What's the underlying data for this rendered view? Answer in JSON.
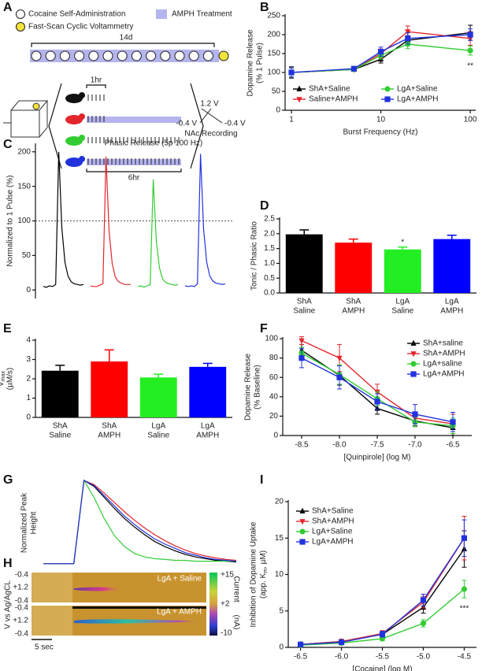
{
  "panel_a": {
    "panel": "A",
    "legend": [
      "Cocaine Self-Administration",
      "AMPH Treatment",
      "Fast-Scan Cyclic Voltammetry"
    ],
    "duration": "14d",
    "hour": "1hr",
    "session": "6hr",
    "voltages": [
      "1.2 V",
      "-0.4 V",
      "-0.4 V"
    ],
    "region": "NAc Recording"
  },
  "panel_h": {
    "panel": "H",
    "ylabel": "V vs Ag/AgCL",
    "voltages": [
      "-0.4",
      "+1.2",
      "-0.4",
      "-0.4",
      "+1.2",
      "-0.4"
    ],
    "conditions": [
      "LgA + Saline",
      "LgA + AMPH"
    ],
    "colorbar": [
      "+15",
      "+2",
      "-10"
    ],
    "colorbar_label": [
      "Current",
      "(nA)"
    ],
    "scale": "5 sec"
  },
  "chart_data": [
    {
      "panel": "B",
      "type": "line",
      "x": [
        1,
        5,
        10,
        20,
        100
      ],
      "xscale": "log",
      "xlim": [
        0.85,
        115
      ],
      "xticks": [
        1,
        10,
        100
      ],
      "ylim": [
        0,
        250
      ],
      "yticks": [
        0,
        50,
        100,
        150,
        200,
        250
      ],
      "xlabel": "Burst Frequency (Hz)",
      "ylabel": [
        "Dopamine Release",
        "(% 1 Pulse)"
      ],
      "legend": "lower center",
      "legend_columns": 2,
      "annotation": "**",
      "series": [
        {
          "name": "ShA+Saline",
          "color": "#000000",
          "marker": "triangle-up",
          "values": [
            100,
            108,
            135,
            185,
            205
          ],
          "errors": [
            15,
            4,
            10,
            12,
            20
          ]
        },
        {
          "name": "Saline+AMPH",
          "color": "#e3262c",
          "marker": "triangle-down",
          "values": [
            100,
            108,
            150,
            208,
            190
          ],
          "errors": [
            12,
            4,
            12,
            15,
            18
          ]
        },
        {
          "name": "LgA+Saline",
          "color": "#33cc33",
          "marker": "circle",
          "values": [
            100,
            108,
            145,
            175,
            158
          ],
          "errors": [
            12,
            4,
            10,
            12,
            12
          ]
        },
        {
          "name": "LgA+AMPH",
          "color": "#2233dd",
          "marker": "square",
          "values": [
            100,
            110,
            155,
            190,
            200
          ],
          "errors": [
            12,
            4,
            12,
            15,
            15
          ]
        }
      ]
    },
    {
      "panel": "C",
      "type": "line",
      "title": "Phasic Release (5p 100 Hz)",
      "ylim": [
        -10,
        210
      ],
      "yticks": [
        0,
        50,
        100,
        150,
        200
      ],
      "ylabel": [
        "Normalized to 1 Pulse (%)"
      ],
      "hline": 100,
      "series": [
        {
          "color": "#000000",
          "values": [
            5,
            4,
            6,
            5,
            8,
            200,
            90,
            40,
            20,
            12,
            9,
            8,
            7,
            8
          ]
        },
        {
          "color": "#e3262c",
          "values": [
            6,
            5,
            5,
            7,
            9,
            193,
            85,
            38,
            19,
            12,
            10,
            8,
            8,
            8
          ]
        },
        {
          "color": "#33cc33",
          "values": [
            5,
            6,
            4,
            6,
            8,
            160,
            70,
            32,
            16,
            11,
            9,
            8,
            7,
            8
          ]
        },
        {
          "color": "#2233dd",
          "values": [
            6,
            5,
            6,
            5,
            9,
            197,
            88,
            40,
            20,
            13,
            10,
            9,
            8,
            9
          ]
        }
      ]
    },
    {
      "panel": "D",
      "type": "bar",
      "categories": [
        [
          "ShA",
          "Saline"
        ],
        [
          "ShA",
          "AMPH"
        ],
        [
          "LgA",
          "Saline"
        ],
        [
          "LgA",
          "AMPH"
        ]
      ],
      "values": [
        1.98,
        1.7,
        1.47,
        1.82
      ],
      "errors": [
        0.15,
        0.12,
        0.08,
        0.13
      ],
      "colors": [
        "#000000",
        "#ff0000",
        "#22ee22",
        "#0000ff"
      ],
      "ylim": [
        0,
        2.5
      ],
      "yticks": [
        {
          "value": 0,
          "label": "0.0"
        },
        0.5,
        {
          "value": 1,
          "label": "1.0"
        },
        1.5,
        {
          "value": 2,
          "label": "2.0"
        },
        2.5
      ],
      "ylabel": [
        "Tonic / Phasic Ratio"
      ],
      "annotation": "*"
    },
    {
      "panel": "E",
      "type": "bar",
      "categories": [
        [
          "ShA",
          "Saline"
        ],
        [
          "ShA",
          "AMPH"
        ],
        [
          "LgA",
          "Saline"
        ],
        [
          "LgA",
          "AMPH"
        ]
      ],
      "values": [
        2.42,
        2.9,
        2.07,
        2.62
      ],
      "errors": [
        0.28,
        0.6,
        0.17,
        0.18
      ],
      "colors": [
        "#000000",
        "#ff0000",
        "#22ee22",
        "#0000ff"
      ],
      "ylim": [
        0,
        4
      ],
      "yticks": [
        0,
        1,
        2,
        3,
        4
      ],
      "ylabel": [
        "Dopamine Uptake",
        [
          "V",
          "max"
        ],
        "(µM/s)"
      ]
    },
    {
      "panel": "F",
      "type": "line",
      "x": [
        -8.5,
        -8,
        -7.5,
        -7,
        -6.5
      ],
      "xlim": [
        -8.75,
        -6.25
      ],
      "xticks": [
        -8.5,
        {
          "value": -8,
          "label": "-8.0"
        },
        -7.5,
        {
          "value": -7,
          "label": "-7.0"
        },
        -6.5
      ],
      "ylim": [
        0,
        100
      ],
      "yticks": [
        0,
        20,
        40,
        60,
        80,
        100
      ],
      "xlabel": "[Quinpirole] (log M)",
      "ylabel": [
        "Dopamine Release",
        "(% Baseline)"
      ],
      "legend": "upper right",
      "series": [
        {
          "name": "ShA+saline",
          "color": "#000000",
          "marker": "triangle-up",
          "values": [
            88,
            62,
            28,
            15,
            8
          ],
          "errors": [
            6,
            10,
            6,
            5,
            8
          ]
        },
        {
          "name": "ShA+AMPH",
          "color": "#e3262c",
          "marker": "triangle-down",
          "values": [
            98,
            80,
            45,
            18,
            12
          ],
          "errors": [
            4,
            14,
            8,
            6,
            10
          ]
        },
        {
          "name": "LgA+saline",
          "color": "#33cc33",
          "marker": "circle",
          "values": [
            85,
            63,
            38,
            14,
            10
          ],
          "errors": [
            6,
            10,
            7,
            5,
            8
          ]
        },
        {
          "name": "LgA+AMPH",
          "color": "#2233dd",
          "marker": "square",
          "values": [
            80,
            60,
            35,
            22,
            14
          ],
          "errors": [
            10,
            12,
            8,
            10,
            10
          ]
        }
      ]
    },
    {
      "panel": "G",
      "type": "line",
      "ylim": [
        0,
        1
      ],
      "ylabel": [
        "Normalized Peak",
        "Height"
      ],
      "series": [
        {
          "color": "#000000",
          "values": [
            0.02,
            0.02,
            0.02,
            0.02,
            1,
            0.93,
            0.8,
            0.67,
            0.55,
            0.45,
            0.36,
            0.28,
            0.22,
            0.17,
            0.13,
            0.1,
            0.08,
            0.06,
            0.05,
            0.04
          ]
        },
        {
          "color": "#e3262c",
          "values": [
            0.02,
            0.02,
            0.02,
            0.02,
            1,
            0.95,
            0.85,
            0.74,
            0.63,
            0.53,
            0.44,
            0.36,
            0.29,
            0.23,
            0.18,
            0.14,
            0.11,
            0.09,
            0.07,
            0.06
          ]
        },
        {
          "color": "#33cc33",
          "values": [
            0.02,
            0.02,
            0.02,
            0.02,
            1,
            0.8,
            0.55,
            0.35,
            0.22,
            0.14,
            0.1,
            0.08,
            0.07,
            0.06,
            0.06,
            0.05,
            0.05,
            0.05,
            0.05,
            0.05
          ]
        },
        {
          "color": "#2233dd",
          "values": [
            0.02,
            0.02,
            0.02,
            0.02,
            1,
            0.94,
            0.82,
            0.7,
            0.58,
            0.48,
            0.39,
            0.31,
            0.25,
            0.2,
            0.15,
            0.12,
            0.09,
            0.07,
            0.06,
            0.05
          ]
        }
      ]
    },
    {
      "panel": "I",
      "type": "line",
      "x": [
        -6.5,
        -6,
        -5.5,
        -5,
        -4.5
      ],
      "xlim": [
        -6.65,
        -4.35
      ],
      "xticks": [
        -6.5,
        {
          "value": -6,
          "label": "-6.0"
        },
        -5.5,
        {
          "value": -5,
          "label": "-5.0"
        },
        -4.5
      ],
      "ylim": [
        0,
        20
      ],
      "yticks": [
        0,
        5,
        10,
        15,
        20
      ],
      "xlabel": "[Cocaine] (log M)",
      "ylabel": [
        "Inhibition of Dopamine Uptake",
        [
          "(app. K",
          "m",
          ", µM)"
        ]
      ],
      "legend": "upper left",
      "annotation": "***",
      "series": [
        {
          "name": "ShA+Saline",
          "color": "#000000",
          "marker": "triangle-up",
          "values": [
            0.4,
            0.8,
            1.8,
            5.5,
            13.5
          ],
          "errors": [
            0.3,
            0.3,
            0.4,
            0.8,
            2.5
          ]
        },
        {
          "name": "ShA+AMPH",
          "color": "#e3262c",
          "marker": "triangle-down",
          "values": [
            0.4,
            0.8,
            1.9,
            6.2,
            15
          ],
          "errors": [
            0.3,
            0.3,
            0.4,
            0.8,
            3
          ]
        },
        {
          "name": "LgA+Saline",
          "color": "#33cc33",
          "marker": "circle",
          "values": [
            0.3,
            0.6,
            1.2,
            3.3,
            8
          ],
          "errors": [
            0.2,
            0.2,
            0.3,
            0.5,
            1.2
          ]
        },
        {
          "name": "LgA+AMPH",
          "color": "#2233dd",
          "marker": "square",
          "values": [
            0.4,
            0.7,
            1.8,
            6.5,
            15
          ],
          "errors": [
            0.3,
            0.3,
            0.4,
            0.8,
            2.5
          ]
        }
      ]
    }
  ]
}
